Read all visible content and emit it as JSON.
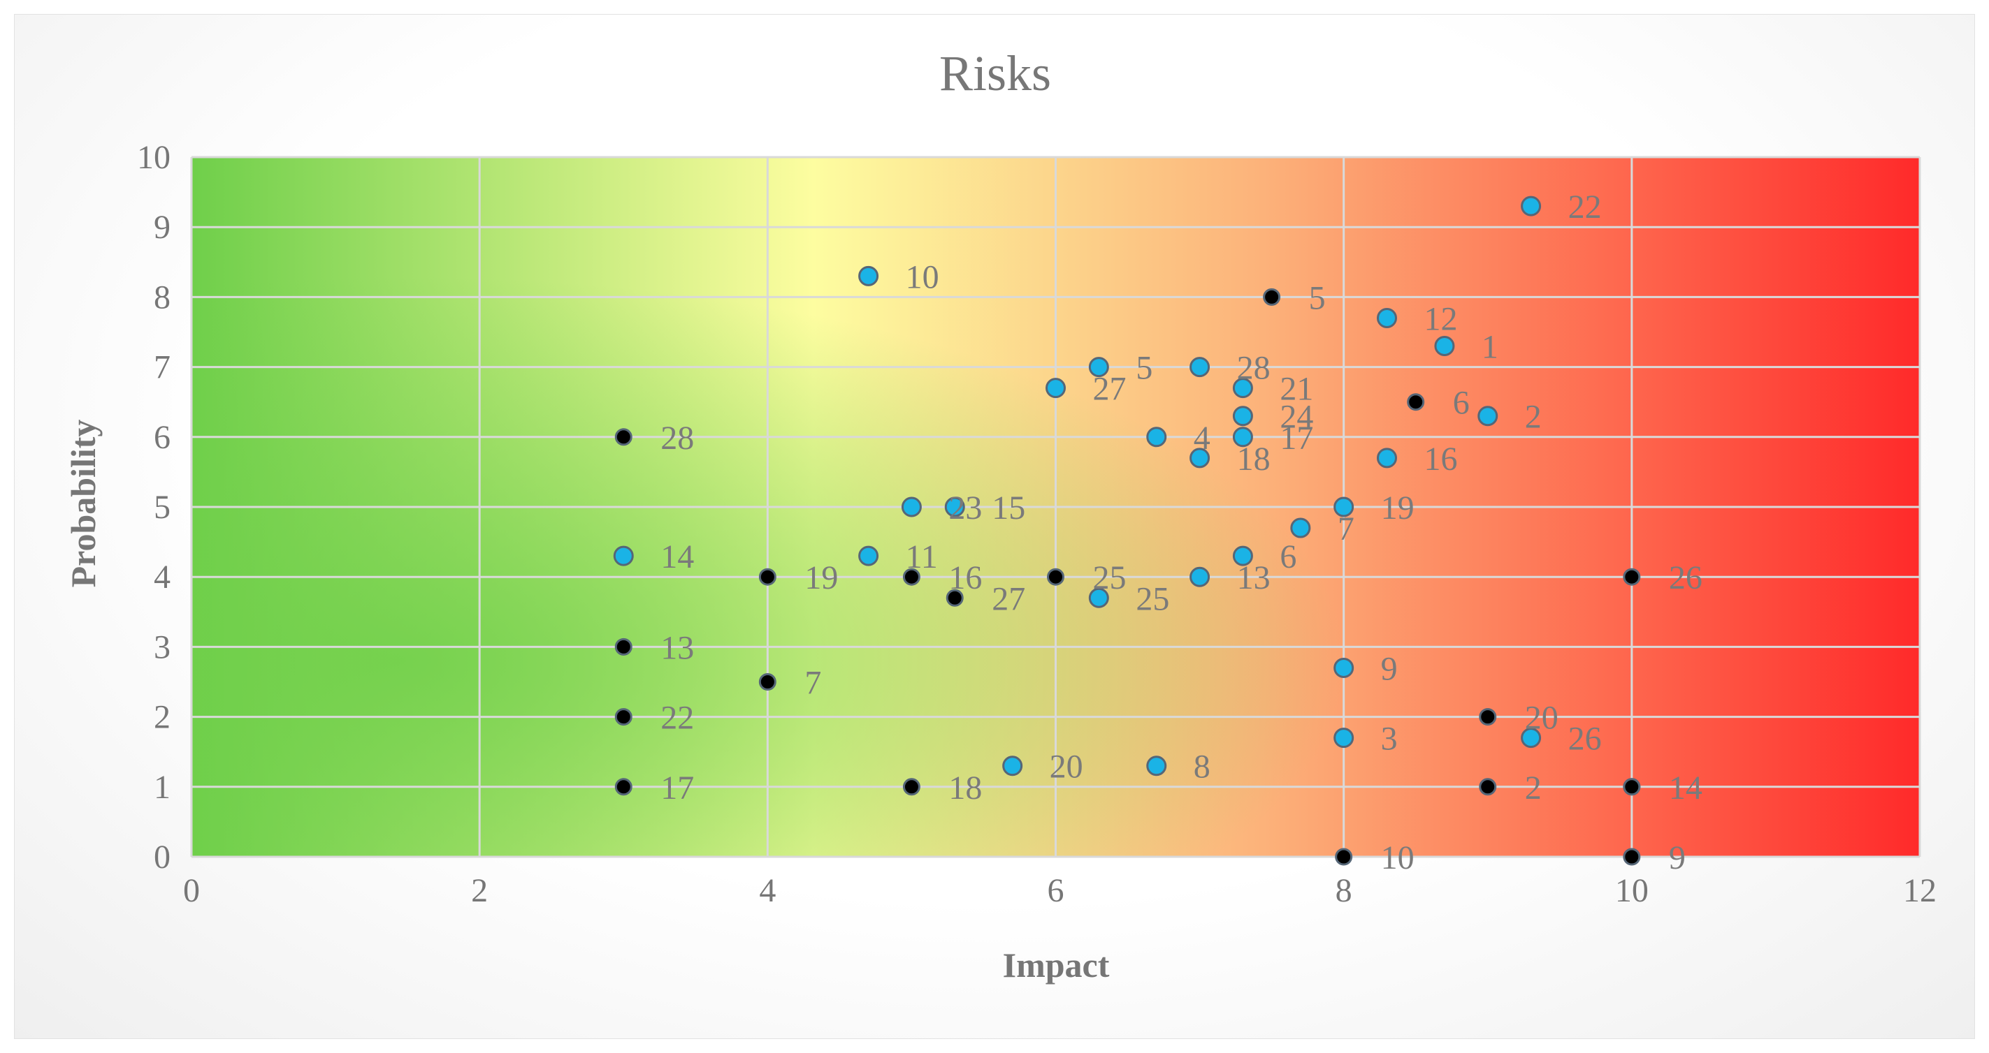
{
  "chart_data": {
    "type": "scatter",
    "title": "Risks",
    "xlabel": "Impact",
    "ylabel": "Probability",
    "xlim": [
      0,
      12
    ],
    "ylim": [
      0,
      10
    ],
    "x_ticks": [
      "0",
      "2",
      "4",
      "6",
      "8",
      "10",
      "12"
    ],
    "y_ticks": [
      "0",
      "1",
      "2",
      "3",
      "4",
      "5",
      "6",
      "7",
      "8",
      "9",
      "10"
    ],
    "grid": true,
    "background": "green-yellow-red heat gradient (low risk bottom-left to high risk right)",
    "colors": {
      "series_a_fill": "#1ab3e6",
      "series_b_fill": "#000000",
      "marker_stroke": "#556677",
      "grid": "#d9d9d9",
      "green": "#6fcf4a",
      "yellow": "#fdfda0",
      "orange": "#fcb27a",
      "red": "#ff2a2a"
    },
    "series": [
      {
        "name": "series-a",
        "color": "#1ab3e6",
        "points": [
          {
            "x": 9.3,
            "y": 9.3,
            "label": "22"
          },
          {
            "x": 4.7,
            "y": 8.3,
            "label": "10"
          },
          {
            "x": 8.3,
            "y": 7.7,
            "label": "12"
          },
          {
            "x": 8.7,
            "y": 7.3,
            "label": "1"
          },
          {
            "x": 6.3,
            "y": 7.0,
            "label": "5"
          },
          {
            "x": 7.0,
            "y": 7.0,
            "label": "28"
          },
          {
            "x": 6.0,
            "y": 6.7,
            "label": "27"
          },
          {
            "x": 7.3,
            "y": 6.7,
            "label": "21"
          },
          {
            "x": 7.3,
            "y": 6.3,
            "label": "24"
          },
          {
            "x": 9.0,
            "y": 6.3,
            "label": "2"
          },
          {
            "x": 6.7,
            "y": 6.0,
            "label": "4"
          },
          {
            "x": 7.3,
            "y": 6.0,
            "label": "17"
          },
          {
            "x": 7.0,
            "y": 5.7,
            "label": "18"
          },
          {
            "x": 8.3,
            "y": 5.7,
            "label": "16"
          },
          {
            "x": 5.0,
            "y": 5.0,
            "label": "23"
          },
          {
            "x": 5.3,
            "y": 5.0,
            "label": "15"
          },
          {
            "x": 8.0,
            "y": 5.0,
            "label": "19"
          },
          {
            "x": 7.7,
            "y": 4.7,
            "label": "7"
          },
          {
            "x": 3.0,
            "y": 4.3,
            "label": "14"
          },
          {
            "x": 4.7,
            "y": 4.3,
            "label": "11"
          },
          {
            "x": 7.3,
            "y": 4.3,
            "label": "6"
          },
          {
            "x": 7.0,
            "y": 4.0,
            "label": "13"
          },
          {
            "x": 6.3,
            "y": 3.7,
            "label": "25"
          },
          {
            "x": 8.0,
            "y": 2.7,
            "label": "9"
          },
          {
            "x": 8.0,
            "y": 1.7,
            "label": "3"
          },
          {
            "x": 9.3,
            "y": 1.7,
            "label": "26"
          },
          {
            "x": 5.7,
            "y": 1.3,
            "label": "20"
          },
          {
            "x": 6.7,
            "y": 1.3,
            "label": "8"
          }
        ]
      },
      {
        "name": "series-b",
        "color": "#000000",
        "points": [
          {
            "x": 7.5,
            "y": 8.0,
            "label": "5"
          },
          {
            "x": 8.5,
            "y": 6.5,
            "label": "6"
          },
          {
            "x": 3.0,
            "y": 6.0,
            "label": "28"
          },
          {
            "x": 4.0,
            "y": 4.0,
            "label": "19"
          },
          {
            "x": 5.0,
            "y": 4.0,
            "label": "16"
          },
          {
            "x": 6.0,
            "y": 4.0,
            "label": "25"
          },
          {
            "x": 10.0,
            "y": 4.0,
            "label": "26"
          },
          {
            "x": 5.3,
            "y": 3.7,
            "label": "27"
          },
          {
            "x": 3.0,
            "y": 3.0,
            "label": "13"
          },
          {
            "x": 4.0,
            "y": 2.5,
            "label": "7"
          },
          {
            "x": 3.0,
            "y": 2.0,
            "label": "22"
          },
          {
            "x": 9.0,
            "y": 2.0,
            "label": "20"
          },
          {
            "x": 3.0,
            "y": 1.0,
            "label": "17"
          },
          {
            "x": 5.0,
            "y": 1.0,
            "label": "18"
          },
          {
            "x": 9.0,
            "y": 1.0,
            "label": "2"
          },
          {
            "x": 10.0,
            "y": 1.0,
            "label": "1"
          },
          {
            "x": 10.0,
            "y": 1.0,
            "label": "14"
          },
          {
            "x": 8.0,
            "y": 0.0,
            "label": "10"
          },
          {
            "x": 10.0,
            "y": 0.0,
            "label": "9"
          }
        ]
      }
    ]
  }
}
